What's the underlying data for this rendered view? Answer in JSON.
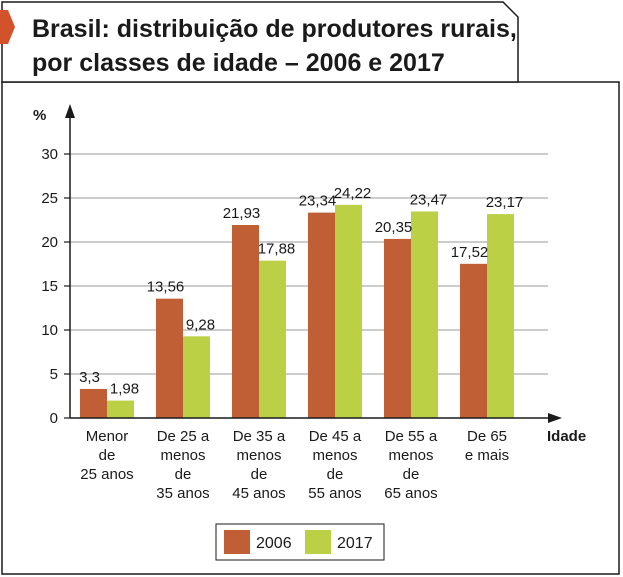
{
  "colors": {
    "accent": "#D2522C",
    "series_2006": "#C05E35",
    "series_2017": "#BCD046",
    "grid": "#9a9a9a",
    "axis": "#1a1a1a",
    "frame": "#1a1a1a"
  },
  "chart_data": {
    "type": "bar",
    "title_lines": [
      "Brasil: distribuição de produtores rurais,",
      "por classes de idade – 2006 e 2017"
    ],
    "ylabel": "%",
    "xlabel": "Idade",
    "ylim": [
      0,
      30
    ],
    "yticks": [
      0,
      5,
      10,
      15,
      20,
      25,
      30
    ],
    "grid": true,
    "legend_position": "bottom-center",
    "categories": [
      [
        "Menor",
        "de",
        "25 anos"
      ],
      [
        "De 25 a",
        "menos",
        "de",
        "35 anos"
      ],
      [
        "De 35 a",
        "menos",
        "de",
        "45 anos"
      ],
      [
        "De 45 a",
        "menos",
        "de",
        "55 anos"
      ],
      [
        "De 55 a",
        "menos",
        "de",
        "65 anos"
      ],
      [
        "De 65",
        "e mais"
      ]
    ],
    "series": [
      {
        "name": "2006",
        "values": [
          3.3,
          13.56,
          21.93,
          23.34,
          20.35,
          17.52
        ],
        "labels": [
          "3,3",
          "13,56",
          "21,93",
          "23,34",
          "20,35",
          "17,52"
        ]
      },
      {
        "name": "2017",
        "values": [
          1.98,
          9.28,
          17.88,
          24.22,
          23.47,
          23.17
        ],
        "labels": [
          "1,98",
          "9,28",
          "17,88",
          "24,22",
          "23,47",
          "23,17"
        ]
      }
    ]
  }
}
